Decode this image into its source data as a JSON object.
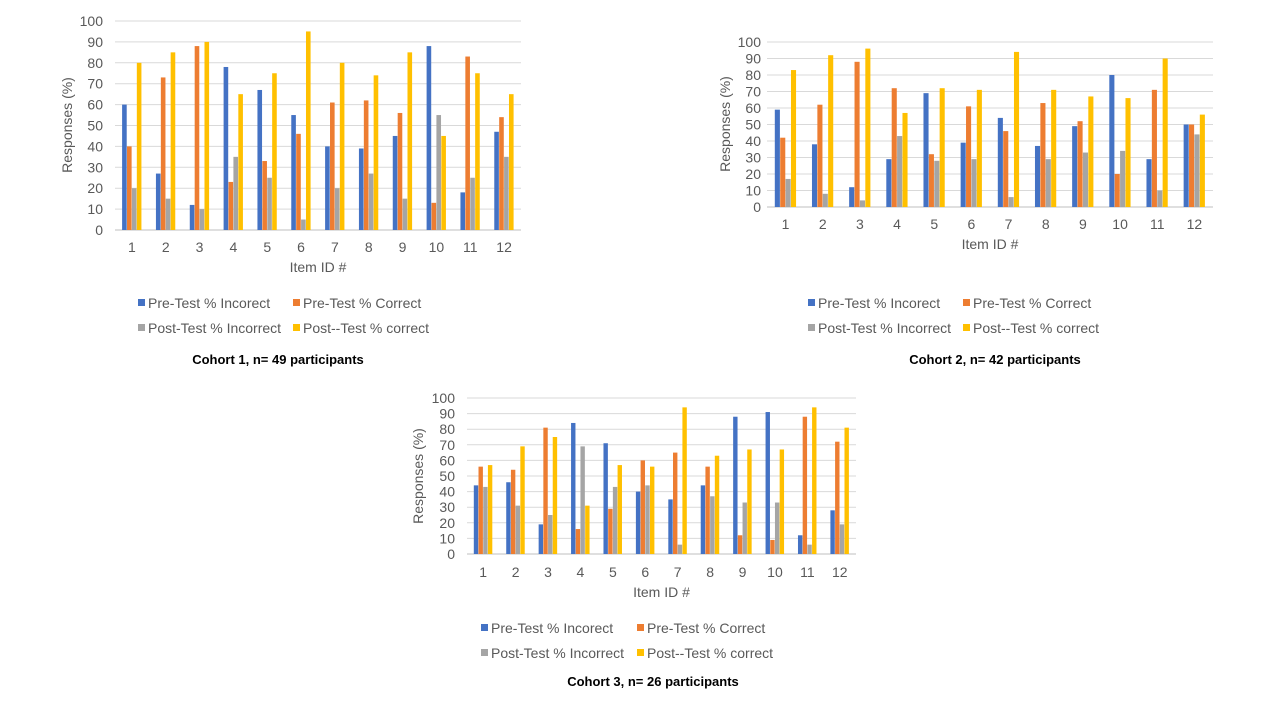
{
  "chart_data": [
    {
      "type": "bar",
      "caption": "Cohort 1, n= 49 participants",
      "xlabel": "Item ID #",
      "ylabel": "Responses (%)",
      "ylim": [
        0,
        100
      ],
      "yticks": [
        "0",
        "10",
        "20",
        "30",
        "40",
        "50",
        "60",
        "70",
        "80",
        "90",
        "100"
      ],
      "grid": true,
      "legend_position": "bottom",
      "categories": [
        "1",
        "2",
        "3",
        "4",
        "5",
        "6",
        "7",
        "8",
        "9",
        "10",
        "11",
        "12"
      ],
      "series": [
        {
          "name": "Pre-Test % Incorect",
          "color": "#4472C4",
          "values": [
            60,
            27,
            12,
            78,
            67,
            55,
            40,
            39,
            45,
            88,
            18,
            47
          ]
        },
        {
          "name": "Pre-Test % Correct",
          "color": "#ED7D31",
          "values": [
            40,
            73,
            88,
            23,
            33,
            46,
            61,
            62,
            56,
            13,
            83,
            54
          ]
        },
        {
          "name": "Post-Test % Incorrect",
          "color": "#A5A5A5",
          "values": [
            20,
            15,
            10,
            35,
            25,
            5,
            20,
            27,
            15,
            55,
            25,
            35
          ]
        },
        {
          "name": "Post--Test % correct",
          "color": "#FFC000",
          "values": [
            80,
            85,
            90,
            65,
            75,
            95,
            80,
            74,
            85,
            45,
            75,
            65
          ]
        }
      ]
    },
    {
      "type": "bar",
      "caption": "Cohort 2,  n= 42 participants",
      "xlabel": "Item ID #",
      "ylabel": "Responses (%)",
      "ylim": [
        0,
        100
      ],
      "yticks": [
        "0",
        "10",
        "20",
        "30",
        "40",
        "50",
        "60",
        "70",
        "80",
        "90",
        "100"
      ],
      "grid": true,
      "legend_position": "bottom",
      "categories": [
        "1",
        "2",
        "3",
        "4",
        "5",
        "6",
        "7",
        "8",
        "9",
        "10",
        "11",
        "12"
      ],
      "series": [
        {
          "name": "Pre-Test % Incorect",
          "color": "#4472C4",
          "values": [
            59,
            38,
            12,
            29,
            69,
            39,
            54,
            37,
            49,
            80,
            29,
            50
          ]
        },
        {
          "name": "Pre-Test % Correct",
          "color": "#ED7D31",
          "values": [
            42,
            62,
            88,
            72,
            32,
            61,
            46,
            63,
            52,
            20,
            71,
            50
          ]
        },
        {
          "name": "Post-Test % Incorrect",
          "color": "#A5A5A5",
          "values": [
            17,
            8,
            4,
            43,
            28,
            29,
            6,
            29,
            33,
            34,
            10,
            44
          ]
        },
        {
          "name": "Post--Test % correct",
          "color": "#FFC000",
          "values": [
            83,
            92,
            96,
            57,
            72,
            71,
            94,
            71,
            67,
            66,
            90,
            56
          ]
        }
      ]
    },
    {
      "type": "bar",
      "caption": "Cohort 3, n= 26 participants",
      "xlabel": "Item ID #",
      "ylabel": "Responses (%)",
      "ylim": [
        0,
        100
      ],
      "yticks": [
        "0",
        "10",
        "20",
        "30",
        "40",
        "50",
        "60",
        "70",
        "80",
        "90",
        "100"
      ],
      "grid": true,
      "legend_position": "bottom",
      "categories": [
        "1",
        "2",
        "3",
        "4",
        "5",
        "6",
        "7",
        "8",
        "9",
        "10",
        "11",
        "12"
      ],
      "series": [
        {
          "name": "Pre-Test % Incorect",
          "color": "#4472C4",
          "values": [
            44,
            46,
            19,
            84,
            71,
            40,
            35,
            44,
            88,
            91,
            12,
            28
          ]
        },
        {
          "name": "Pre-Test % Correct",
          "color": "#ED7D31",
          "values": [
            56,
            54,
            81,
            16,
            29,
            60,
            65,
            56,
            12,
            9,
            88,
            72
          ]
        },
        {
          "name": "Post-Test % Incorrect",
          "color": "#A5A5A5",
          "values": [
            43,
            31,
            25,
            69,
            43,
            44,
            6,
            37,
            33,
            33,
            6,
            19
          ]
        },
        {
          "name": "Post--Test % correct",
          "color": "#FFC000",
          "values": [
            57,
            69,
            75,
            31,
            57,
            56,
            94,
            63,
            67,
            67,
            94,
            81
          ]
        }
      ]
    }
  ]
}
